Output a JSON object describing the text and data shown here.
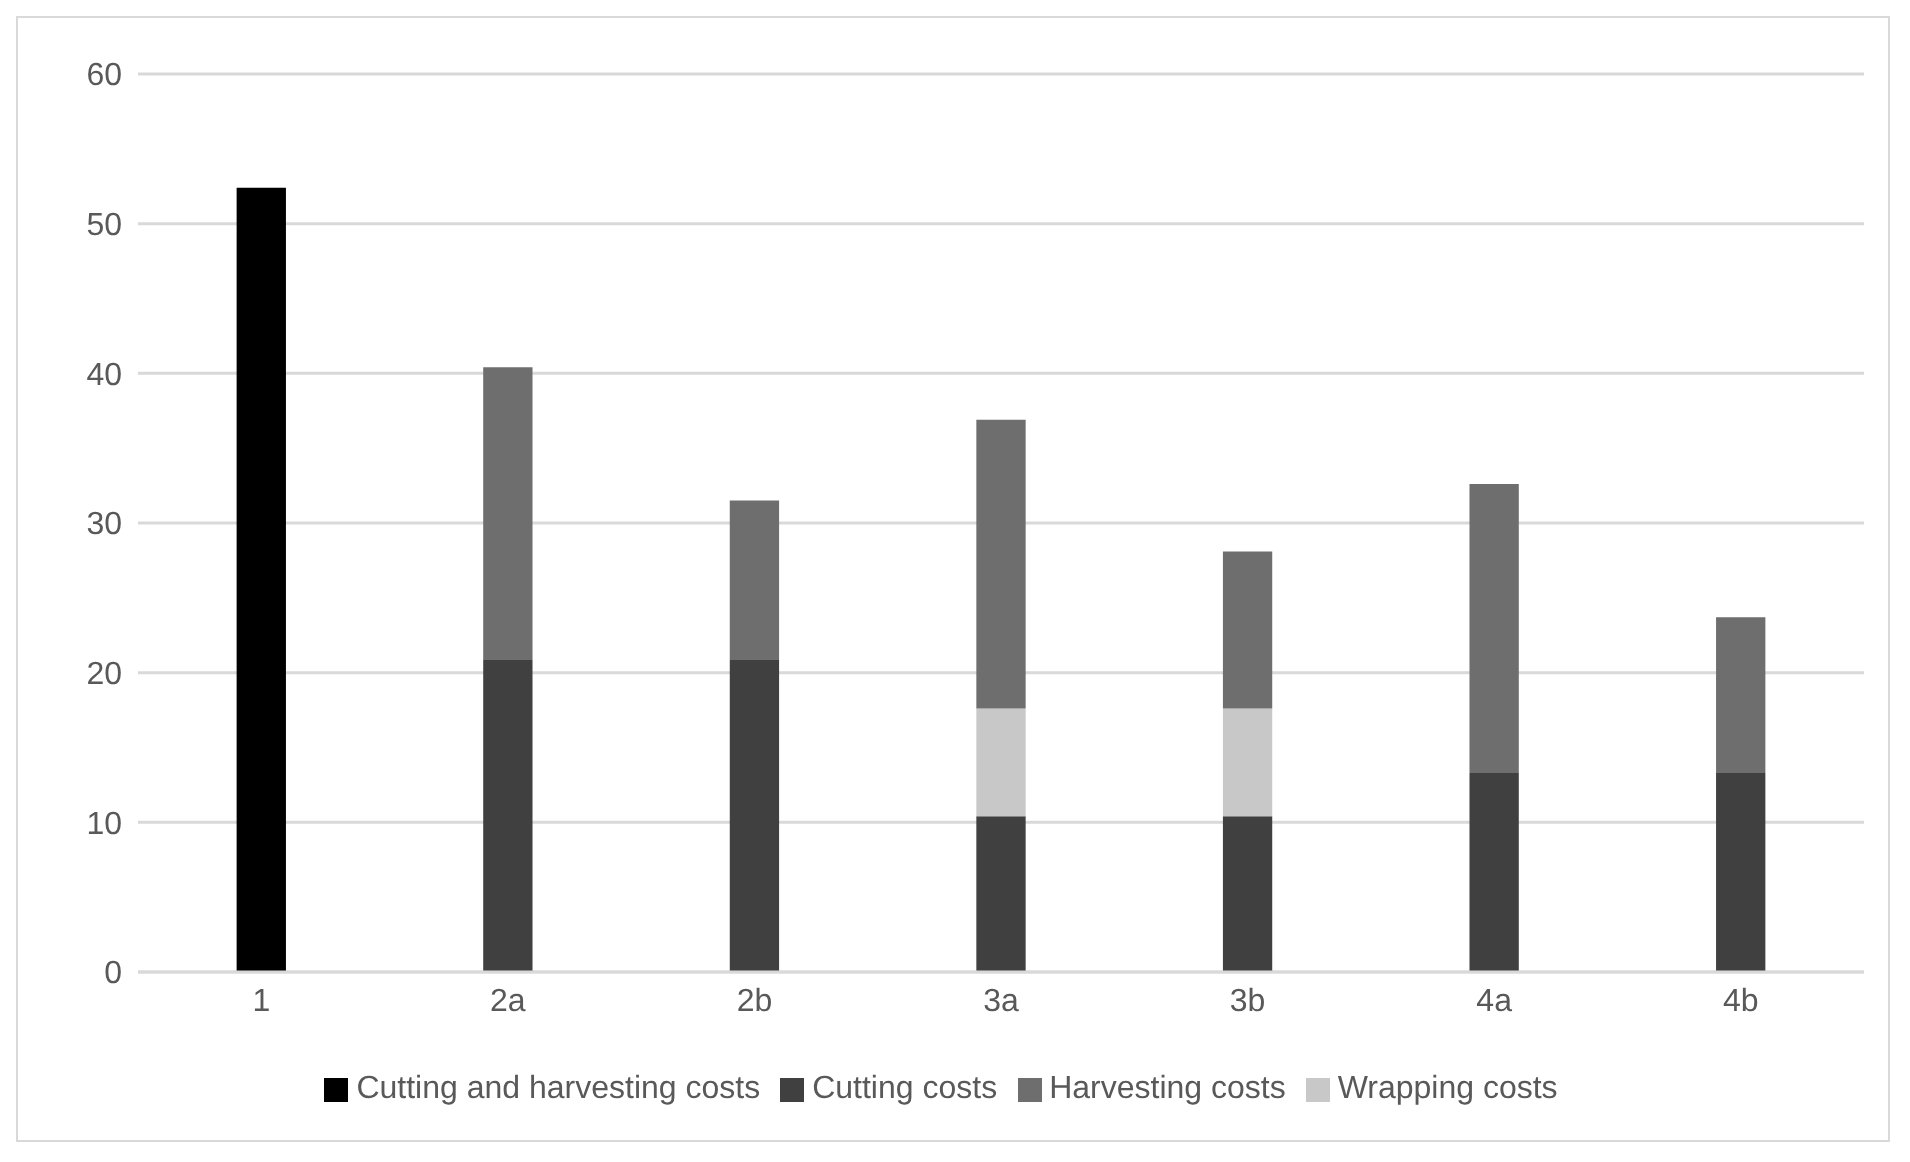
{
  "chart_data": {
    "type": "bar",
    "stacked": true,
    "categories": [
      "1",
      "2a",
      "2b",
      "3a",
      "3b",
      "4a",
      "4b"
    ],
    "series": [
      {
        "name": "Cutting and harvesting costs",
        "color": "#000000",
        "values": [
          52.4,
          null,
          null,
          null,
          null,
          null,
          null
        ]
      },
      {
        "name": "Cutting costs",
        "color": "#404040",
        "values": [
          null,
          20.9,
          20.9,
          10.4,
          10.4,
          13.3,
          13.3
        ]
      },
      {
        "name": "Wrapping costs",
        "color": "#c8c8c8",
        "values": [
          null,
          null,
          null,
          7.2,
          7.2,
          null,
          null
        ]
      },
      {
        "name": "Harvesting costs",
        "color": "#6e6e6e",
        "values": [
          null,
          19.5,
          10.6,
          19.3,
          10.5,
          19.3,
          10.4
        ]
      }
    ],
    "ylim": [
      0,
      60
    ],
    "yticks": [
      0,
      10,
      20,
      30,
      40,
      50,
      60
    ],
    "grid": "y",
    "legend": "bottom"
  }
}
